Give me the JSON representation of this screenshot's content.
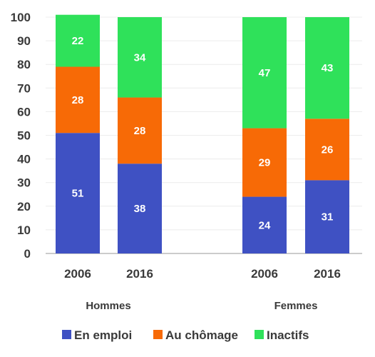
{
  "chart_data": {
    "type": "bar",
    "stacked": true,
    "categories": [
      "2006",
      "2016",
      "2006",
      "2016"
    ],
    "groups": [
      {
        "label": "Hommes",
        "categories": [
          "2006",
          "2016"
        ]
      },
      {
        "label": "Femmes",
        "categories": [
          "2006",
          "2016"
        ]
      }
    ],
    "series": [
      {
        "name": "En emploi",
        "color": "#3f51c3",
        "values": [
          51,
          38,
          24,
          31
        ]
      },
      {
        "name": "Au chômage",
        "color": "#f76a06",
        "values": [
          28,
          28,
          29,
          26
        ]
      },
      {
        "name": "Inactifs",
        "color": "#2fe15a",
        "values": [
          22,
          34,
          47,
          43
        ]
      }
    ],
    "ylim": [
      0,
      100
    ],
    "yticks": [
      0,
      10,
      20,
      30,
      40,
      50,
      60,
      70,
      80,
      90,
      100
    ],
    "title": "",
    "xlabel": "",
    "ylabel": "",
    "legend_position": "bottom",
    "grid": true
  }
}
